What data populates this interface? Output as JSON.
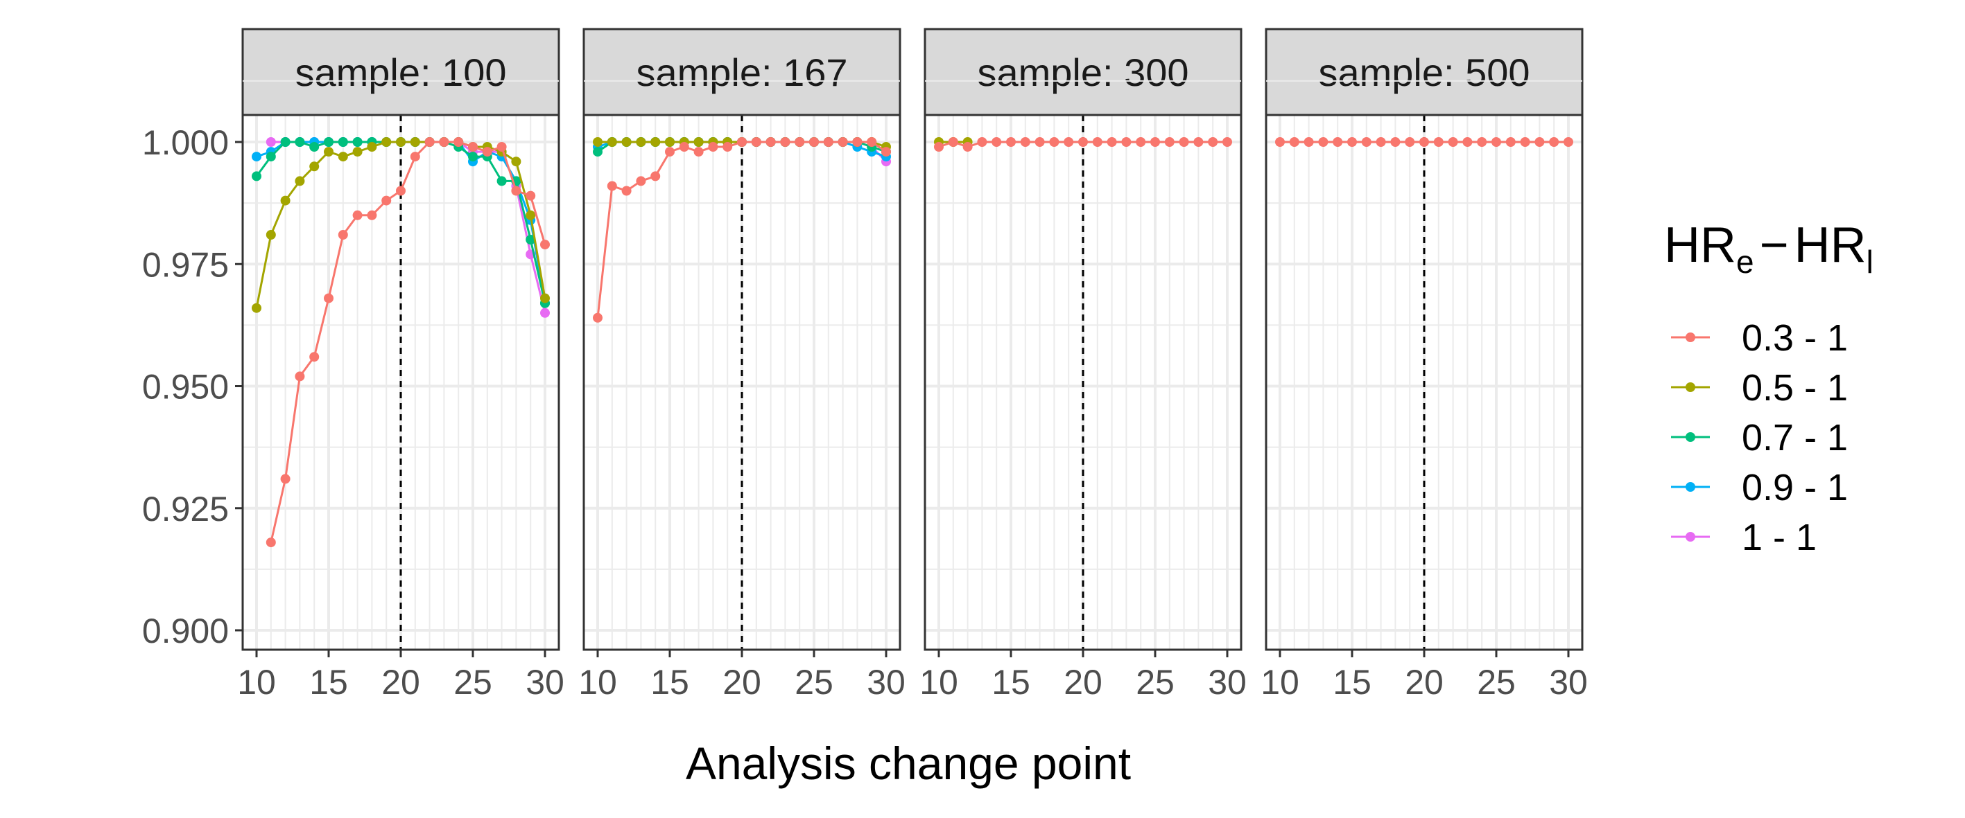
{
  "chart_data": {
    "type": "line",
    "xlabel": "Analysis change point",
    "ylabel": "",
    "ylim": [
      0.9,
      1.0
    ],
    "xlim": [
      10,
      30
    ],
    "x_ticks": [
      10,
      15,
      20,
      25,
      30
    ],
    "y_ticks": [
      0.9,
      0.925,
      0.95,
      0.975,
      1.0
    ],
    "y_tick_labels": [
      "0.900",
      "0.925",
      "0.950",
      "0.975",
      "1.000"
    ],
    "reference_line_x": 20,
    "grid": true,
    "legend": {
      "position": "right",
      "title_main1": "HR",
      "title_sub1": "e",
      "title_sep": "−",
      "title_main2": "HR",
      "title_sub2": "l"
    },
    "x": [
      10,
      11,
      12,
      13,
      14,
      15,
      16,
      17,
      18,
      19,
      20,
      21,
      22,
      23,
      24,
      25,
      26,
      27,
      28,
      29,
      30
    ],
    "series_colors": {
      "0.3 - 1": "#F8766D",
      "0.5 - 1": "#A3A500",
      "0.7 - 1": "#00BF7D",
      "0.9 - 1": "#00B0F6",
      "1 - 1": "#E76BF3"
    },
    "panels": [
      {
        "title": "sample: 100",
        "series": [
          {
            "name": "1 - 1",
            "values": [
              null,
              1.0,
              1.0,
              1.0,
              1.0,
              1.0,
              1.0,
              1.0,
              1.0,
              1.0,
              1.0,
              1.0,
              1.0,
              1.0,
              1.0,
              0.998,
              0.998,
              0.998,
              0.991,
              0.977,
              0.965
            ]
          },
          {
            "name": "0.9 - 1",
            "values": [
              0.997,
              0.998,
              1.0,
              1.0,
              1.0,
              1.0,
              1.0,
              1.0,
              1.0,
              1.0,
              1.0,
              1.0,
              1.0,
              1.0,
              1.0,
              0.996,
              0.998,
              0.997,
              0.992,
              0.984,
              0.967
            ]
          },
          {
            "name": "0.7 - 1",
            "values": [
              0.993,
              0.997,
              1.0,
              1.0,
              0.999,
              1.0,
              1.0,
              1.0,
              1.0,
              1.0,
              1.0,
              1.0,
              1.0,
              1.0,
              0.999,
              0.997,
              0.997,
              0.992,
              0.992,
              0.98,
              0.967
            ]
          },
          {
            "name": "0.5 - 1",
            "values": [
              0.966,
              0.981,
              0.988,
              0.992,
              0.995,
              0.998,
              0.997,
              0.998,
              0.999,
              1.0,
              1.0,
              1.0,
              1.0,
              1.0,
              1.0,
              0.999,
              0.999,
              0.998,
              0.996,
              0.985,
              0.968
            ]
          },
          {
            "name": "0.3 - 1",
            "values": [
              null,
              0.918,
              0.931,
              0.952,
              0.956,
              0.968,
              0.981,
              0.985,
              0.985,
              0.988,
              0.99,
              0.997,
              1.0,
              1.0,
              1.0,
              0.999,
              0.998,
              0.999,
              0.99,
              0.989,
              0.979
            ]
          }
        ]
      },
      {
        "title": "sample: 167",
        "series": [
          {
            "name": "1 - 1",
            "values": [
              null,
              null,
              null,
              null,
              null,
              null,
              null,
              null,
              null,
              null,
              1.0,
              1.0,
              1.0,
              1.0,
              1.0,
              1.0,
              1.0,
              1.0,
              1.0,
              0.999,
              0.996
            ]
          },
          {
            "name": "0.9 - 1",
            "values": [
              0.999,
              1.0,
              1.0,
              1.0,
              1.0,
              1.0,
              1.0,
              1.0,
              1.0,
              1.0,
              1.0,
              1.0,
              1.0,
              1.0,
              1.0,
              1.0,
              1.0,
              1.0,
              0.999,
              0.998,
              0.997
            ]
          },
          {
            "name": "0.7 - 1",
            "values": [
              0.998,
              1.0,
              1.0,
              1.0,
              1.0,
              1.0,
              1.0,
              1.0,
              1.0,
              1.0,
              1.0,
              1.0,
              1.0,
              1.0,
              1.0,
              1.0,
              1.0,
              1.0,
              1.0,
              0.999,
              0.998
            ]
          },
          {
            "name": "0.5 - 1",
            "values": [
              1.0,
              1.0,
              1.0,
              1.0,
              1.0,
              1.0,
              1.0,
              1.0,
              1.0,
              1.0,
              1.0,
              1.0,
              1.0,
              1.0,
              1.0,
              1.0,
              1.0,
              1.0,
              1.0,
              1.0,
              0.999
            ]
          },
          {
            "name": "0.3 - 1",
            "values": [
              0.964,
              0.991,
              0.99,
              0.992,
              0.993,
              0.998,
              0.999,
              0.998,
              0.999,
              0.999,
              1.0,
              1.0,
              1.0,
              1.0,
              1.0,
              1.0,
              1.0,
              1.0,
              1.0,
              1.0,
              0.998
            ]
          }
        ]
      },
      {
        "title": "sample: 300",
        "series": [
          {
            "name": "0.5 - 1",
            "values": [
              1.0,
              1.0,
              1.0,
              null,
              null,
              null,
              null,
              null,
              null,
              null,
              null,
              null,
              null,
              null,
              null,
              null,
              null,
              null,
              null,
              null,
              null
            ]
          },
          {
            "name": "0.3 - 1",
            "values": [
              0.999,
              1.0,
              0.999,
              1.0,
              1.0,
              1.0,
              1.0,
              1.0,
              1.0,
              1.0,
              1.0,
              1.0,
              1.0,
              1.0,
              1.0,
              1.0,
              1.0,
              1.0,
              1.0,
              1.0,
              1.0
            ]
          }
        ]
      },
      {
        "title": "sample: 500",
        "series": [
          {
            "name": "0.3 - 1",
            "values": [
              1.0,
              1.0,
              1.0,
              1.0,
              1.0,
              1.0,
              1.0,
              1.0,
              1.0,
              1.0,
              1.0,
              1.0,
              1.0,
              1.0,
              1.0,
              1.0,
              1.0,
              1.0,
              1.0,
              1.0,
              1.0
            ]
          }
        ]
      }
    ],
    "legend_items": [
      "0.3 - 1",
      "0.5 - 1",
      "0.7 - 1",
      "0.9 - 1",
      "1 - 1"
    ]
  }
}
